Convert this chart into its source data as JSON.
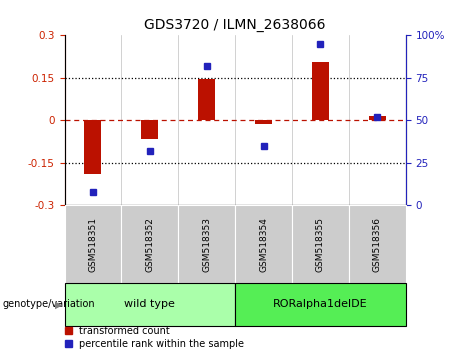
{
  "title": "GDS3720 / ILMN_2638066",
  "samples": [
    "GSM518351",
    "GSM518352",
    "GSM518353",
    "GSM518354",
    "GSM518355",
    "GSM518356"
  ],
  "bar_values": [
    -0.19,
    -0.065,
    0.145,
    -0.012,
    0.205,
    0.015
  ],
  "dot_values": [
    8,
    32,
    82,
    35,
    95,
    52
  ],
  "ylim_left": [
    -0.3,
    0.3
  ],
  "ylim_right": [
    0,
    100
  ],
  "yticks_left": [
    -0.3,
    -0.15,
    0,
    0.15,
    0.3
  ],
  "ytick_labels_left": [
    "-0.3",
    "-0.15",
    "0",
    "0.15",
    "0.3"
  ],
  "yticks_right": [
    0,
    25,
    50,
    75,
    100
  ],
  "ytick_labels_right": [
    "0",
    "25",
    "50",
    "75",
    "100%"
  ],
  "bar_color": "#bb1100",
  "dot_color": "#2222bb",
  "genotype_labels": [
    "wild type",
    "RORalpha1delDE"
  ],
  "genotype_colors": [
    "#aaffaa",
    "#55ee55"
  ],
  "genotype_ranges": [
    [
      0,
      3
    ],
    [
      3,
      6
    ]
  ],
  "legend_bar_label": "transformed count",
  "legend_dot_label": "percentile rank within the sample",
  "genotype_header": "genotype/variation",
  "background_color": "#ffffff",
  "plot_bg_color": "#ffffff",
  "tick_label_color_left": "#cc2200",
  "tick_label_color_right": "#2222bb",
  "tick_area_bg": "#cccccc",
  "bar_width": 0.3
}
